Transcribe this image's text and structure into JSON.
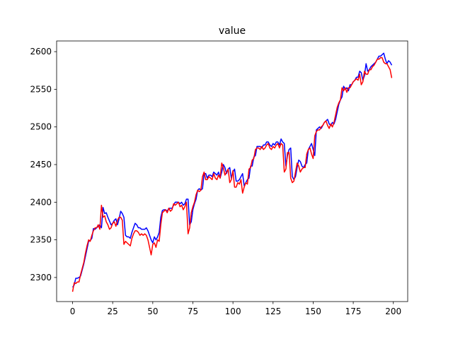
{
  "chart_data": {
    "type": "line",
    "title": "value",
    "x": [
      0,
      1,
      2,
      3,
      4,
      5,
      6,
      7,
      8,
      9,
      10,
      11,
      12,
      13,
      14,
      15,
      16,
      17,
      18,
      19,
      20,
      21,
      22,
      23,
      24,
      25,
      26,
      27,
      28,
      29,
      30,
      31,
      32,
      33,
      34,
      35,
      36,
      37,
      38,
      39,
      40,
      41,
      42,
      43,
      44,
      45,
      46,
      47,
      48,
      49,
      50,
      51,
      52,
      53,
      54,
      55,
      56,
      57,
      58,
      59,
      60,
      61,
      62,
      63,
      64,
      65,
      66,
      67,
      68,
      69,
      70,
      71,
      72,
      73,
      74,
      75,
      76,
      77,
      78,
      79,
      80,
      81,
      82,
      83,
      84,
      85,
      86,
      87,
      88,
      89,
      90,
      91,
      92,
      93,
      94,
      95,
      96,
      97,
      98,
      99,
      100,
      101,
      102,
      103,
      104,
      105,
      106,
      107,
      108,
      109,
      110,
      111,
      112,
      113,
      114,
      115,
      116,
      117,
      118,
      119,
      120,
      121,
      122,
      123,
      124,
      125,
      126,
      127,
      128,
      129,
      130,
      131,
      132,
      133,
      134,
      135,
      136,
      137,
      138,
      139,
      140,
      141,
      142,
      143,
      144,
      145,
      146,
      147,
      148,
      149,
      150,
      151,
      152,
      153,
      154,
      155,
      156,
      157,
      158,
      159,
      160,
      161,
      162,
      163,
      164,
      165,
      166,
      167,
      168,
      169,
      170,
      171,
      172,
      173,
      174,
      175,
      176,
      177,
      178,
      179,
      180,
      181,
      182,
      183,
      184,
      185,
      186,
      187,
      188,
      189,
      190,
      191,
      192,
      193,
      194,
      195,
      196,
      197,
      198,
      199
    ],
    "series": [
      {
        "color": "#0000ff",
        "values": [
          2287,
          2290,
          2299,
          2299,
          2300,
          2302,
          2310,
          2318,
          2328,
          2338,
          2348,
          2349,
          2352,
          2365,
          2364,
          2366,
          2368,
          2370,
          2366,
          2393,
          2385,
          2386,
          2380,
          2375,
          2370,
          2372,
          2376,
          2378,
          2370,
          2378,
          2388,
          2385,
          2380,
          2356,
          2354,
          2354,
          2352,
          2360,
          2366,
          2372,
          2370,
          2366,
          2366,
          2364,
          2364,
          2364,
          2366,
          2362,
          2356,
          2350,
          2346,
          2354,
          2350,
          2354,
          2360,
          2380,
          2389,
          2390,
          2390,
          2388,
          2392,
          2392,
          2392,
          2396,
          2400,
          2400,
          2400,
          2398,
          2400,
          2396,
          2398,
          2404,
          2404,
          2370,
          2374,
          2390,
          2398,
          2404,
          2416,
          2418,
          2416,
          2418,
          2438,
          2438,
          2432,
          2436,
          2436,
          2434,
          2440,
          2438,
          2436,
          2440,
          2432,
          2440,
          2450,
          2446,
          2438,
          2444,
          2446,
          2432,
          2440,
          2444,
          2428,
          2428,
          2430,
          2434,
          2438,
          2422,
          2426,
          2430,
          2432,
          2448,
          2448,
          2460,
          2462,
          2474,
          2474,
          2474,
          2472,
          2476,
          2476,
          2480,
          2480,
          2476,
          2474,
          2478,
          2476,
          2480,
          2480,
          2476,
          2484,
          2480,
          2478,
          2448,
          2462,
          2470,
          2472,
          2434,
          2430,
          2434,
          2446,
          2456,
          2454,
          2448,
          2446,
          2450,
          2452,
          2470,
          2474,
          2478,
          2470,
          2462,
          2496,
          2498,
          2500,
          2498,
          2502,
          2506,
          2508,
          2510,
          2504,
          2502,
          2506,
          2504,
          2510,
          2520,
          2530,
          2536,
          2540,
          2554,
          2550,
          2552,
          2548,
          2556,
          2556,
          2560,
          2562,
          2566,
          2566,
          2574,
          2572,
          2562,
          2568,
          2584,
          2574,
          2576,
          2580,
          2582,
          2584,
          2586,
          2590,
          2594,
          2594,
          2596,
          2598,
          2590,
          2584,
          2588,
          2586,
          2582
        ]
      },
      {
        "color": "#ff0000",
        "values": [
          2281,
          2293,
          2292,
          2294,
          2294,
          2304,
          2312,
          2320,
          2332,
          2342,
          2350,
          2348,
          2356,
          2362,
          2366,
          2366,
          2370,
          2364,
          2396,
          2380,
          2382,
          2374,
          2370,
          2364,
          2366,
          2372,
          2374,
          2368,
          2376,
          2380,
          2380,
          2376,
          2344,
          2348,
          2346,
          2344,
          2342,
          2352,
          2358,
          2362,
          2362,
          2360,
          2356,
          2358,
          2356,
          2358,
          2356,
          2350,
          2340,
          2330,
          2344,
          2346,
          2340,
          2350,
          2348,
          2370,
          2386,
          2388,
          2390,
          2386,
          2392,
          2388,
          2390,
          2398,
          2396,
          2398,
          2400,
          2394,
          2396,
          2390,
          2394,
          2400,
          2358,
          2366,
          2386,
          2394,
          2400,
          2410,
          2416,
          2414,
          2416,
          2434,
          2440,
          2430,
          2430,
          2434,
          2432,
          2430,
          2438,
          2432,
          2430,
          2436,
          2432,
          2452,
          2446,
          2436,
          2440,
          2444,
          2426,
          2430,
          2442,
          2420,
          2420,
          2426,
          2424,
          2430,
          2412,
          2420,
          2426,
          2424,
          2444,
          2446,
          2456,
          2458,
          2470,
          2472,
          2472,
          2470,
          2474,
          2470,
          2472,
          2476,
          2478,
          2472,
          2470,
          2474,
          2472,
          2476,
          2478,
          2472,
          2478,
          2476,
          2440,
          2444,
          2466,
          2466,
          2432,
          2426,
          2428,
          2440,
          2452,
          2448,
          2440,
          2444,
          2446,
          2446,
          2464,
          2470,
          2472,
          2464,
          2458,
          2488,
          2494,
          2496,
          2496,
          2500,
          2502,
          2506,
          2508,
          2502,
          2498,
          2504,
          2500,
          2506,
          2516,
          2526,
          2532,
          2536,
          2552,
          2548,
          2552,
          2546,
          2552,
          2552,
          2556,
          2560,
          2562,
          2564,
          2562,
          2570,
          2556,
          2560,
          2574,
          2570,
          2570,
          2576,
          2576,
          2580,
          2582,
          2586,
          2590,
          2590,
          2592,
          2592,
          2586,
          2584,
          2584,
          2580,
          2576,
          2565
        ]
      }
    ],
    "xlim": [
      -9.95,
      208.95
    ],
    "ylim": [
      2268,
      2614.2
    ],
    "xticks": [
      0,
      25,
      50,
      75,
      100,
      125,
      150,
      175,
      200
    ],
    "yticks": [
      2300,
      2350,
      2400,
      2450,
      2500,
      2550,
      2600
    ],
    "grid": false
  }
}
